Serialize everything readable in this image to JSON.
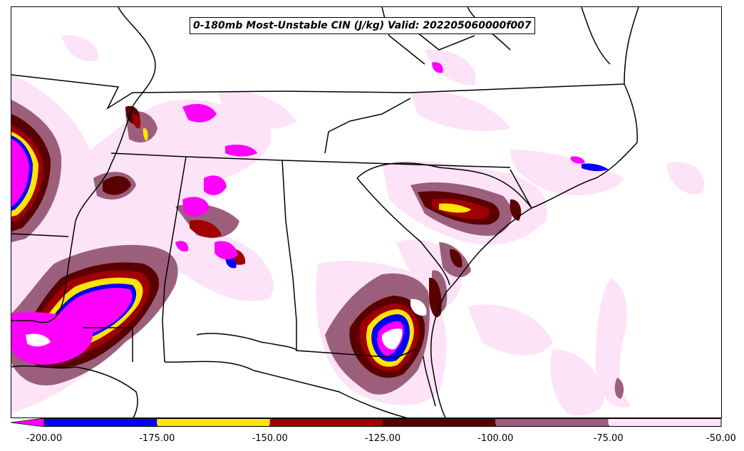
{
  "title": "0-180mb Most-Unstable CIN (J/kg) Valid: 202205060000f007",
  "colorbar": {
    "bins": [
      {
        "from": -200,
        "to": -175,
        "color": "#0000ff"
      },
      {
        "from": -175,
        "to": -150,
        "color": "#ffe600"
      },
      {
        "from": -150,
        "to": -125,
        "color": "#a00000"
      },
      {
        "from": -125,
        "to": -100,
        "color": "#5a0000"
      },
      {
        "from": -100,
        "to": -75,
        "color": "#9b5f7c"
      },
      {
        "from": -75,
        "to": -50,
        "color": "#fde3f7"
      }
    ],
    "under_color": "#ff00ff",
    "tick_labels": [
      "-200.00",
      "-175.00",
      "-150.00",
      "-125.00",
      "-100.00",
      "-75.00",
      "-50.00"
    ]
  },
  "fill_colors": {
    "lightest": "#fde3f7",
    "mauve": "#9b5f7c",
    "dark_red": "#5a0000",
    "red": "#a00000",
    "yellow": "#ffe600",
    "blue": "#0000ff",
    "magenta": "#ff00ff"
  }
}
